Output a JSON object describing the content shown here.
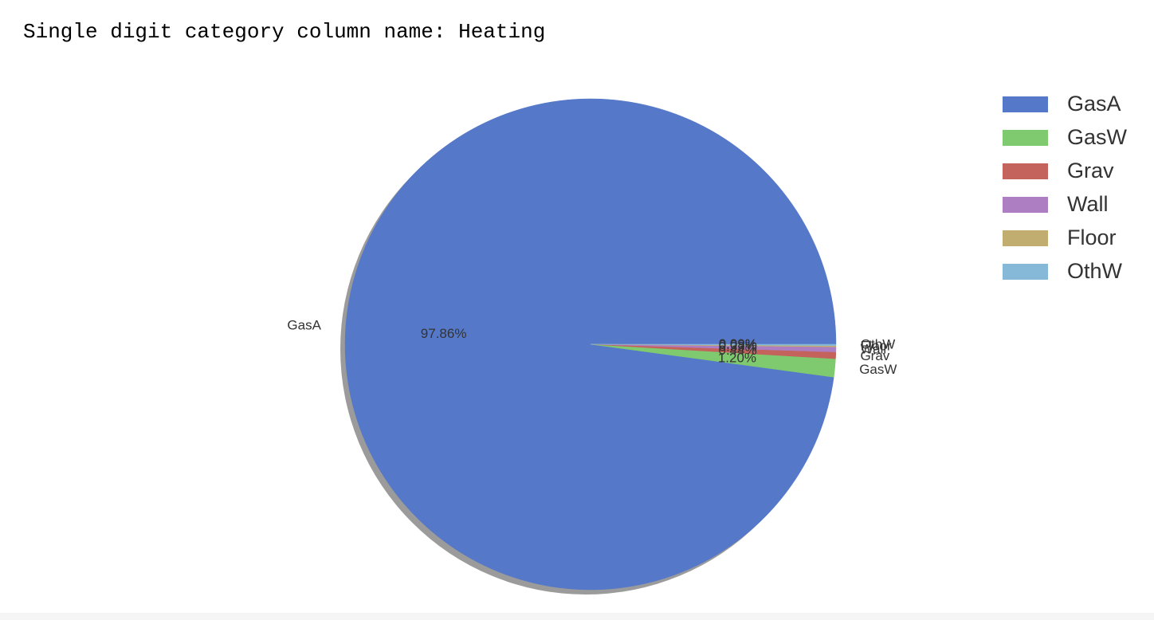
{
  "output": {
    "header_text": "Single digit category column name: Heating"
  },
  "chart_data": {
    "type": "pie",
    "categories": [
      "GasA",
      "GasW",
      "Grav",
      "Wall",
      "Floor",
      "OthW"
    ],
    "values": [
      97.86,
      1.2,
      0.44,
      0.33,
      0.08,
      0.09
    ],
    "value_labels": [
      "97.86%",
      "1.20%",
      "0.44%",
      "0.33%",
      "0.08%",
      "0.09%"
    ],
    "colors": [
      "#5578c8",
      "#7fc96f",
      "#c4625c",
      "#ad7fc2",
      "#c2ad71",
      "#86b8d8"
    ],
    "start_angle_deg": 0,
    "direction": "counterclockwise",
    "shadow": true,
    "legend_placement": "top-right",
    "title": ""
  }
}
